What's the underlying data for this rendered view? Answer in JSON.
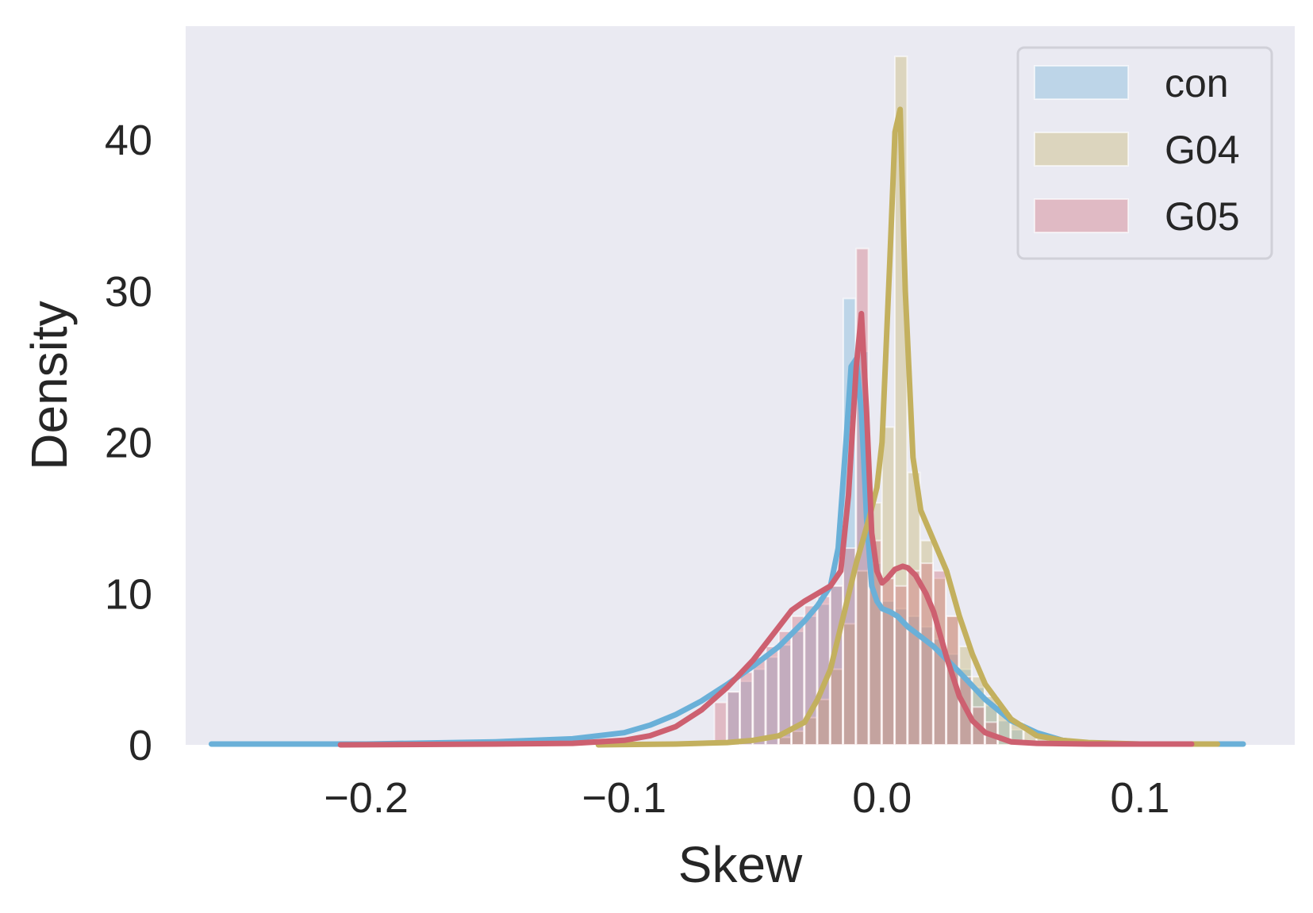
{
  "chart_data": {
    "type": "area",
    "title": "",
    "xlabel": "Skew",
    "ylabel": "Density",
    "xlim": [
      -0.27,
      0.16
    ],
    "ylim": [
      0,
      47.5
    ],
    "xticks": [
      -0.2,
      -0.1,
      0.0,
      0.1
    ],
    "xtick_labels": [
      "−0.2",
      "−0.1",
      "0.0",
      "0.1"
    ],
    "yticks": [
      0,
      10,
      20,
      30,
      40
    ],
    "ytick_labels": [
      "0",
      "10",
      "20",
      "30",
      "40"
    ],
    "grid": false,
    "legend_position": "top-right",
    "background": "#eaeaf2",
    "series": [
      {
        "name": "con",
        "color": "#6ab0d8",
        "kde_x": [
          -0.26,
          -0.2,
          -0.15,
          -0.12,
          -0.1,
          -0.09,
          -0.08,
          -0.07,
          -0.06,
          -0.05,
          -0.04,
          -0.03,
          -0.025,
          -0.02,
          -0.017,
          -0.014,
          -0.012,
          -0.01,
          -0.008,
          -0.006,
          -0.004,
          -0.002,
          0.0,
          0.003,
          0.006,
          0.01,
          0.02,
          0.03,
          0.04,
          0.05,
          0.06,
          0.07,
          0.08,
          0.1,
          0.12,
          0.14
        ],
        "kde_y": [
          0.05,
          0.05,
          0.2,
          0.4,
          0.8,
          1.3,
          2.0,
          2.9,
          4.0,
          5.2,
          6.5,
          8.2,
          9.2,
          10.5,
          13,
          20,
          25,
          25.5,
          22,
          15,
          10.5,
          9.5,
          9.0,
          8.8,
          8.5,
          7.8,
          6.5,
          4.8,
          3.0,
          1.6,
          0.8,
          0.3,
          0.1,
          0.05,
          0.05,
          0.05
        ],
        "hist_x": [
          -0.06,
          -0.055,
          -0.05,
          -0.045,
          -0.04,
          -0.035,
          -0.03,
          -0.025,
          -0.02,
          -0.015,
          -0.01,
          -0.005,
          0.0,
          0.005,
          0.01,
          0.015,
          0.02,
          0.025,
          0.03,
          0.035,
          0.04,
          0.045,
          0.05
        ],
        "hist_y": [
          3.5,
          4.2,
          5.0,
          5.8,
          6.6,
          7.5,
          8.5,
          9.3,
          10.5,
          29.5,
          26,
          12,
          9.5,
          9.0,
          8.5,
          7.8,
          7.0,
          6.0,
          5.0,
          3.8,
          2.6,
          1.6,
          1.0
        ]
      },
      {
        "name": "G04",
        "color": "#c3b05e",
        "kde_x": [
          -0.11,
          -0.08,
          -0.06,
          -0.05,
          -0.04,
          -0.03,
          -0.025,
          -0.02,
          -0.015,
          -0.01,
          -0.005,
          -0.002,
          0.0,
          0.003,
          0.005,
          0.007,
          0.009,
          0.012,
          0.015,
          0.02,
          0.025,
          0.03,
          0.035,
          0.04,
          0.05,
          0.06,
          0.07,
          0.08,
          0.1,
          0.13
        ],
        "kde_y": [
          0.0,
          0.05,
          0.15,
          0.3,
          0.6,
          1.5,
          3.0,
          5.0,
          8.5,
          12,
          15,
          17,
          20,
          32,
          40.5,
          42,
          30,
          19,
          15.5,
          13.5,
          11.5,
          8.5,
          6.0,
          4.0,
          1.7,
          0.6,
          0.3,
          0.15,
          0.05,
          0.05
        ],
        "hist_x": [
          -0.04,
          -0.035,
          -0.03,
          -0.025,
          -0.02,
          -0.015,
          -0.01,
          -0.005,
          0.0,
          0.005,
          0.01,
          0.015,
          0.02,
          0.025,
          0.03,
          0.035,
          0.04,
          0.045,
          0.05,
          0.055,
          0.06
        ],
        "hist_y": [
          0.5,
          0.9,
          1.8,
          3.0,
          5.0,
          8.0,
          11.5,
          16,
          21,
          45.5,
          18,
          13.5,
          11,
          8.5,
          6.5,
          4.5,
          3.2,
          2.2,
          1.5,
          0.9,
          0.5
        ]
      },
      {
        "name": "G05",
        "color": "#cd6070",
        "kde_x": [
          -0.21,
          -0.15,
          -0.12,
          -0.1,
          -0.09,
          -0.08,
          -0.07,
          -0.06,
          -0.05,
          -0.04,
          -0.035,
          -0.03,
          -0.025,
          -0.02,
          -0.016,
          -0.013,
          -0.01,
          -0.008,
          -0.006,
          -0.004,
          -0.002,
          0.0,
          0.002,
          0.005,
          0.008,
          0.01,
          0.013,
          0.017,
          0.02,
          0.025,
          0.03,
          0.035,
          0.04,
          0.05,
          0.06,
          0.08,
          0.12
        ],
        "kde_y": [
          0.0,
          0.05,
          0.1,
          0.3,
          0.6,
          1.2,
          2.3,
          3.8,
          5.6,
          7.8,
          8.9,
          9.5,
          10.0,
          10.5,
          11.5,
          16.5,
          25,
          28.5,
          22,
          14,
          11.5,
          10.7,
          11.0,
          11.6,
          11.8,
          11.7,
          11.2,
          10.0,
          8.8,
          5.8,
          3.2,
          1.6,
          0.8,
          0.2,
          0.1,
          0.05,
          0.05
        ],
        "hist_x": [
          -0.065,
          -0.06,
          -0.055,
          -0.05,
          -0.045,
          -0.04,
          -0.035,
          -0.03,
          -0.025,
          -0.02,
          -0.015,
          -0.01,
          -0.005,
          0.0,
          0.005,
          0.01,
          0.015,
          0.02,
          0.025,
          0.03,
          0.035,
          0.04
        ],
        "hist_y": [
          2.8,
          3.5,
          4.8,
          5.8,
          6.5,
          7.5,
          8.5,
          9.2,
          9.8,
          10.5,
          13,
          32.8,
          13.5,
          11,
          10.5,
          11.5,
          12,
          11.5,
          8.5,
          4.5,
          2.5,
          1.5
        ]
      }
    ]
  }
}
